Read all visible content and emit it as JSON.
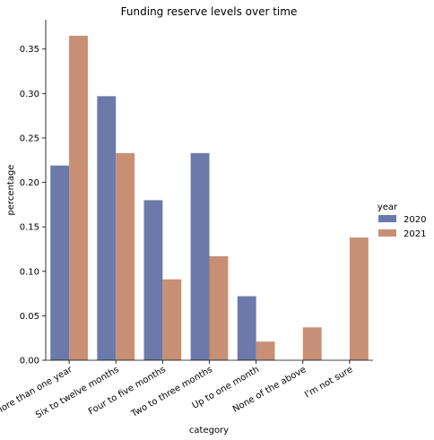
{
  "chart_data": {
    "type": "bar",
    "title": "Funding reserve levels over time",
    "xlabel": "category",
    "ylabel": "percentage",
    "categories": [
      "More than one year",
      "Six to twelve months",
      "Four to five months",
      "Two to three months",
      "Up to one month",
      "None of the above",
      "I'm not sure"
    ],
    "series": [
      {
        "name": "2020",
        "color": "#6b7aaa",
        "values": [
          0.219,
          0.297,
          0.18,
          0.233,
          0.072,
          0,
          0
        ]
      },
      {
        "name": "2021",
        "color": "#c78f74",
        "values": [
          0.365,
          0.233,
          0.091,
          0.117,
          0.021,
          0.037,
          0.138
        ]
      }
    ],
    "ylim": [
      0,
      0.383
    ],
    "yticks": [
      "0.00",
      "0.05",
      "0.10",
      "0.15",
      "0.20",
      "0.25",
      "0.30",
      "0.35"
    ],
    "legend": {
      "title": "year",
      "placement": "right"
    },
    "grid": false
  }
}
